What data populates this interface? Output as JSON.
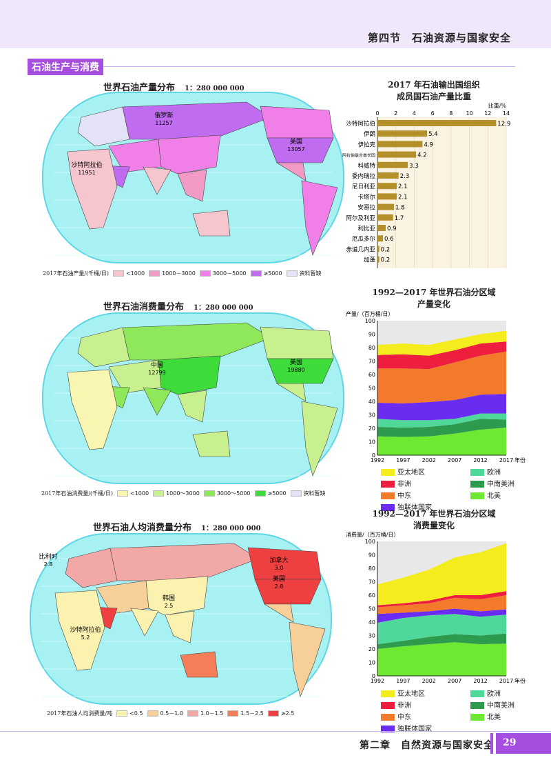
{
  "header": {
    "section_title": "第四节　石油资源与国家安全"
  },
  "section_label": "石油生产与消费",
  "maps": [
    {
      "title": "世界石油产量分布",
      "scale": "1：280 000 000",
      "legend_title": "2017年石油产量/(千桶/日)",
      "legend": [
        {
          "label": "<1000",
          "color": "#f6c6cf"
        },
        {
          "label": "1000－3000",
          "color": "#f29ac6"
        },
        {
          "label": "3000－5000",
          "color": "#f07fe8"
        },
        {
          "label": "≥5000",
          "color": "#c06cf0"
        },
        {
          "label": "资料暂缺",
          "color": "#e4e2f6"
        }
      ],
      "region_classes": {
        "europe": 4,
        "russia": 3,
        "central": 2,
        "arabia": 3,
        "africa": 0,
        "china": 2,
        "india": 0,
        "seasia": 1,
        "australia": 0,
        "canada": 2,
        "usa": 3,
        "mexico": 1,
        "samerica": 2
      },
      "labels": [
        {
          "name": "俄罗斯",
          "value": "11257"
        },
        {
          "name": "美国",
          "value": "13057"
        },
        {
          "name": "沙特阿拉伯",
          "value": "11951"
        }
      ]
    },
    {
      "title": "世界石油消费量分布",
      "scale": "1：280 000 000",
      "legend_title": "2017年石油消费量/(千桶/日)",
      "legend": [
        {
          "label": "<1000",
          "color": "#f8f6b0"
        },
        {
          "label": "1000～3000",
          "color": "#c8f08e"
        },
        {
          "label": "3000～5000",
          "color": "#8fe85a"
        },
        {
          "label": "≥5000",
          "color": "#3ddc3a"
        },
        {
          "label": "资料暂缺",
          "color": "#e4e2f6"
        }
      ],
      "region_classes": {
        "europe": 1,
        "russia": 2,
        "central": 1,
        "arabia": 2,
        "africa": 0,
        "china": 3,
        "india": 2,
        "seasia": 1,
        "australia": 1,
        "canada": 1,
        "usa": 3,
        "mexico": 1,
        "samerica": 1
      },
      "labels": [
        {
          "name": "中国",
          "value": "12799"
        },
        {
          "name": "美国",
          "value": "19880"
        }
      ]
    },
    {
      "title": "世界石油人均消费量分布",
      "scale": "1：280 000 000",
      "legend_title": "2017年石油人均消费量/吨",
      "legend": [
        {
          "label": "<0.5",
          "color": "#fbf2b0"
        },
        {
          "label": "0.5－1.0",
          "color": "#f7cf98"
        },
        {
          "label": "1.0－1.5",
          "color": "#f3a8a8"
        },
        {
          "label": "1.5－2.5",
          "color": "#f47d5a"
        },
        {
          "label": "≥2.5",
          "color": "#ee4040"
        }
      ],
      "region_classes": {
        "europe": 2,
        "russia": 2,
        "central": 1,
        "arabia": 4,
        "africa": 0,
        "china": 0,
        "india": 0,
        "seasia": 0,
        "australia": 3,
        "canada": 4,
        "usa": 4,
        "mexico": 1,
        "samerica": 1
      },
      "labels": [
        {
          "name": "比利时",
          "value": "2.8"
        },
        {
          "name": "沙特阿拉伯",
          "value": "5.2"
        },
        {
          "name": "韩国",
          "value": "2.5"
        },
        {
          "name": "加拿大",
          "value": "3.0"
        },
        {
          "name": "美国",
          "value": "2.8"
        }
      ]
    }
  ],
  "chart_data": [
    {
      "type": "bar",
      "title": "2017年石油输出国组织成员国石油产量比重",
      "xlabel": "比重/%",
      "xlim": [
        0,
        14
      ],
      "ticks": [
        0,
        2,
        4,
        6,
        8,
        10,
        12,
        14
      ],
      "color": "#b3902a",
      "categories": [
        "沙特阿拉伯",
        "伊朗",
        "伊拉克",
        "阿拉伯联合酋长国",
        "科威特",
        "委内瑞拉",
        "尼日利亚",
        "卡塔尔",
        "安哥拉",
        "阿尔及利亚",
        "利比亚",
        "厄瓜多尔",
        "赤道几内亚",
        "加蓬"
      ],
      "value_labels": [
        "12.9",
        "5.4",
        "4.9",
        "4.2",
        "3.3",
        "2.3",
        "2.1",
        "2.1",
        "1.8",
        "1.7",
        "0.9",
        "0.6",
        "0.2",
        "0.2"
      ],
      "values": [
        12.9,
        5.4,
        4.9,
        4.2,
        3.3,
        2.3,
        2.1,
        2.1,
        1.8,
        1.7,
        0.9,
        0.6,
        0.2,
        0.2
      ]
    },
    {
      "type": "area",
      "stacked": true,
      "title": "1992—2017年世界石油分区域产量变化",
      "ylabel": "产量/（百万桶/日）",
      "xlabel": "年份",
      "ylim": [
        0,
        100
      ],
      "yticks": [
        0,
        10,
        20,
        30,
        40,
        50,
        60,
        70,
        80,
        90,
        100
      ],
      "x": [
        1992,
        1997,
        2002,
        2007,
        2012,
        2017
      ],
      "series": [
        {
          "name": "北美",
          "color": "#6fe832",
          "values": [
            14,
            13.5,
            14,
            16,
            19,
            20.5
          ]
        },
        {
          "name": "中南美洲",
          "color": "#2e9a4e",
          "values": [
            7,
            7,
            7,
            7,
            8,
            6
          ]
        },
        {
          "name": "欧洲",
          "color": "#4fd89a",
          "values": [
            6,
            5.5,
            5,
            4,
            4,
            4.5
          ]
        },
        {
          "name": "独联体国家",
          "color": "#6a2cf0",
          "values": [
            12,
            12.5,
            13.5,
            14,
            14,
            14.5
          ]
        },
        {
          "name": "中东",
          "color": "#f27a2a",
          "values": [
            25.5,
            26,
            24.5,
            28,
            29,
            31.5
          ]
        },
        {
          "name": "非洲",
          "color": "#ee1e3e",
          "values": [
            10,
            10.5,
            10,
            9,
            9,
            7.5
          ]
        },
        {
          "name": "亚太地区",
          "color": "#f5ec1e",
          "values": [
            7.5,
            8,
            8,
            8,
            7,
            8
          ]
        }
      ]
    },
    {
      "type": "area",
      "stacked": true,
      "title": "1992—2017年世界石油分区域消费量变化",
      "ylabel": "消费量/（百万桶/日）",
      "xlabel": "年份",
      "ylim": [
        0,
        100
      ],
      "yticks": [
        0,
        10,
        20,
        30,
        40,
        50,
        60,
        70,
        80,
        90,
        100
      ],
      "x": [
        1992,
        1997,
        2002,
        2007,
        2012,
        2017
      ],
      "series": [
        {
          "name": "北美",
          "color": "#6fe832",
          "values": [
            20,
            22,
            23.5,
            25,
            23.5,
            24
          ]
        },
        {
          "name": "中南美洲",
          "color": "#2e9a4e",
          "values": [
            3.5,
            4,
            5.5,
            6,
            6.5,
            7.5
          ]
        },
        {
          "name": "欧洲",
          "color": "#4fd89a",
          "values": [
            16,
            17,
            16,
            15,
            14,
            14
          ]
        },
        {
          "name": "独联体国家",
          "color": "#6a2cf0",
          "values": [
            6.5,
            4,
            3,
            4,
            4,
            4
          ]
        },
        {
          "name": "中东",
          "color": "#f27a2a",
          "values": [
            5,
            5.5,
            6,
            8,
            9,
            10.5
          ]
        },
        {
          "name": "非洲",
          "color": "#ee1e3e",
          "values": [
            1.5,
            1.5,
            2,
            2,
            3,
            3
          ]
        },
        {
          "name": "亚太地区",
          "color": "#f5ec1e",
          "values": [
            15.5,
            19,
            23,
            28,
            32,
            35.5
          ]
        }
      ]
    }
  ],
  "legend_order": [
    "亚太地区",
    "欧洲",
    "非洲",
    "中南美洲",
    "中东",
    "北美",
    "独联体国家"
  ],
  "footer": {
    "chapter": "第二章　自然资源与国家安全",
    "page": "29"
  }
}
